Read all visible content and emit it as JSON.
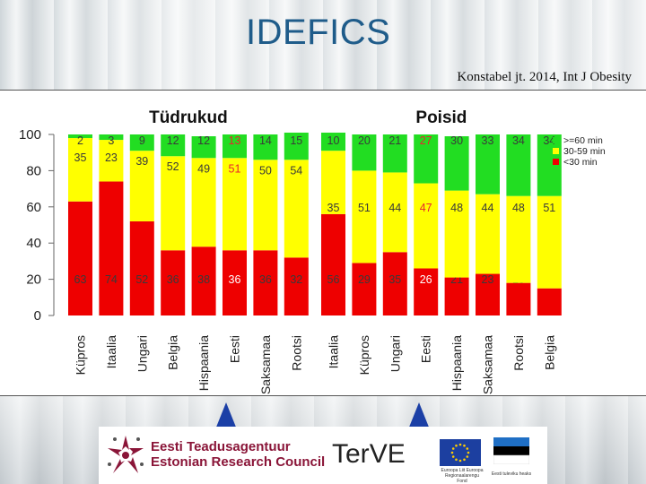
{
  "slide": {
    "title": "IDEFICS",
    "citation": "Konstabel jt. 2014, Int J Obesity"
  },
  "chart_data": {
    "type": "bar",
    "stacked": true,
    "normalized_percent": true,
    "ylim": [
      0,
      100
    ],
    "yticks": [
      0,
      20,
      40,
      60,
      80,
      100
    ],
    "legend": {
      "position": "top-right",
      "entries": [
        {
          "label": ">=60 min",
          "color": "#22dd22"
        },
        {
          "label": "30-59 min",
          "color": "#ffff00"
        },
        {
          "label": "<30 min",
          "color": "#ee0000"
        }
      ]
    },
    "panels": [
      {
        "title": "Tüdrukud",
        "categories": [
          "Küpros",
          "Itaalia",
          "Ungari",
          "Belgia",
          "Hispaania",
          "Eesti",
          "Saksamaa",
          "Rootsi"
        ],
        "series": [
          {
            "name": "<30 min",
            "values": [
              63,
              74,
              52,
              36,
              38,
              36,
              36,
              32
            ]
          },
          {
            "name": "30-59 min",
            "values": [
              35,
              23,
              39,
              52,
              49,
              51,
              50,
              54
            ]
          },
          {
            "name": ">=60 min",
            "values": [
              2,
              3,
              9,
              12,
              12,
              13,
              14,
              15
            ]
          }
        ],
        "highlight_category": "Eesti"
      },
      {
        "title": "Poisid",
        "categories": [
          "Itaalia",
          "Küpros",
          "Ungari",
          "Eesti",
          "Hispaania",
          "Saksamaa",
          "Rootsi",
          "Belgia"
        ],
        "series": [
          {
            "name": "<30 min",
            "values": [
              56,
              29,
              35,
              26,
              21,
              23,
              18,
              15
            ]
          },
          {
            "name": "30-59 min",
            "values": [
              35,
              51,
              44,
              47,
              48,
              44,
              48,
              51
            ]
          },
          {
            "name": ">=60 min",
            "values": [
              10,
              20,
              21,
              27,
              30,
              33,
              34,
              34
            ]
          }
        ],
        "highlight_category": "Eesti"
      }
    ]
  },
  "logos": {
    "etag_line1": "Eesti Teadusagentuur",
    "etag_line2": "Estonian Research Council",
    "terve": "Ter",
    "terve_suffix": "VE",
    "eu_caption": "Euroopa Liit Euroopa Regionaalarengu Fond",
    "ee_caption": "Eesti tuleviku heaks",
    "colors": {
      "etag_red": "#8a1538",
      "eu_blue": "#1c3fa0",
      "eu_star": "#ffcc00"
    }
  }
}
